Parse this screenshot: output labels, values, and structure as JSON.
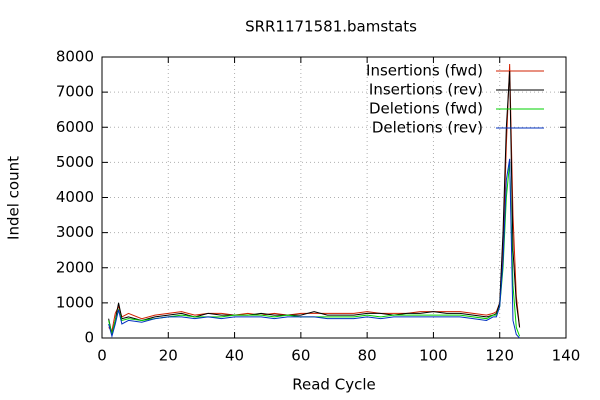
{
  "chart_data": {
    "type": "line",
    "title": "SRR1171581.bamstats",
    "xlabel": "Read Cycle",
    "ylabel": "Indel count",
    "x": [
      2,
      3,
      4,
      5,
      6,
      8,
      12,
      16,
      20,
      24,
      28,
      32,
      36,
      40,
      44,
      48,
      52,
      56,
      60,
      64,
      68,
      72,
      76,
      80,
      84,
      88,
      92,
      96,
      100,
      104,
      108,
      112,
      116,
      118,
      119,
      120,
      121,
      122,
      123,
      124,
      125,
      126
    ],
    "series": [
      {
        "name": "Insertions (fwd)",
        "color": "#d02000",
        "values": [
          300,
          200,
          700,
          900,
          600,
          700,
          550,
          650,
          700,
          750,
          650,
          700,
          700,
          650,
          700,
          650,
          700,
          650,
          700,
          700,
          700,
          700,
          700,
          750,
          700,
          700,
          700,
          750,
          750,
          750,
          750,
          700,
          650,
          700,
          750,
          1000,
          2500,
          5500,
          7800,
          3500,
          1200,
          300
        ]
      },
      {
        "name": "Insertions (rev)",
        "color": "#000000",
        "values": [
          550,
          100,
          500,
          1000,
          550,
          600,
          500,
          600,
          650,
          700,
          600,
          700,
          650,
          650,
          650,
          700,
          650,
          650,
          650,
          750,
          650,
          650,
          650,
          700,
          700,
          650,
          700,
          700,
          750,
          700,
          700,
          650,
          600,
          650,
          700,
          1000,
          3000,
          6000,
          7600,
          2500,
          1000,
          300
        ]
      },
      {
        "name": "Deletions (fwd)",
        "color": "#00d000",
        "values": [
          500,
          100,
          500,
          800,
          500,
          550,
          500,
          550,
          600,
          650,
          600,
          600,
          600,
          650,
          650,
          650,
          600,
          650,
          600,
          600,
          600,
          600,
          600,
          650,
          600,
          650,
          650,
          650,
          650,
          650,
          650,
          600,
          550,
          650,
          650,
          900,
          2000,
          4000,
          5000,
          1500,
          300,
          50
        ]
      },
      {
        "name": "Deletions (rev)",
        "color": "#0030c0",
        "values": [
          400,
          50,
          400,
          800,
          400,
          500,
          450,
          550,
          600,
          600,
          550,
          600,
          550,
          600,
          600,
          600,
          550,
          600,
          600,
          600,
          550,
          550,
          550,
          600,
          550,
          600,
          600,
          600,
          600,
          600,
          600,
          550,
          500,
          600,
          600,
          900,
          2200,
          4500,
          5100,
          500,
          100,
          0
        ]
      }
    ],
    "xlim": [
      0,
      140
    ],
    "xticks": [
      0,
      20,
      40,
      60,
      80,
      100,
      120,
      140
    ],
    "ylim": [
      0,
      8000
    ],
    "yticks": [
      0,
      1000,
      2000,
      3000,
      4000,
      5000,
      6000,
      7000,
      8000
    ],
    "grid": true,
    "legend": "top-right"
  }
}
